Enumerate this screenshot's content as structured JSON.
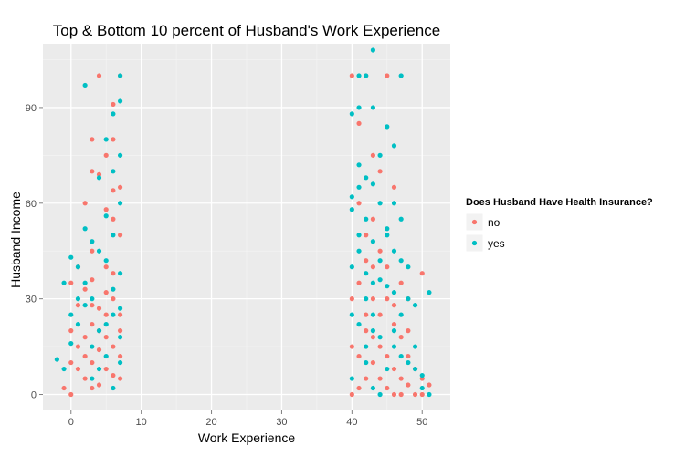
{
  "chart_data": {
    "type": "scatter",
    "title": "Top & Bottom 10 percent of Husband's Work Experience",
    "xlabel": "Work Experience",
    "ylabel": "Husband Income",
    "xlim": [
      -4,
      54
    ],
    "ylim": [
      -5,
      110
    ],
    "x_ticks": [
      0,
      10,
      20,
      30,
      40,
      50
    ],
    "y_ticks": [
      0,
      30,
      60,
      90
    ],
    "grid": true,
    "legend": {
      "title": "Does Husband Have Health Insurance?",
      "placement": "right",
      "entries": [
        {
          "label": "no",
          "color": "#F8766D"
        },
        {
          "label": "yes",
          "color": "#00BFC4"
        }
      ]
    },
    "series": [
      {
        "name": "no",
        "color": "#F8766D",
        "points": [
          [
            4,
            100
          ],
          [
            6,
            91
          ],
          [
            7,
            100
          ],
          [
            3,
            80
          ],
          [
            5,
            75
          ],
          [
            6,
            80
          ],
          [
            3,
            70
          ],
          [
            4,
            69
          ],
          [
            6,
            64
          ],
          [
            7,
            65
          ],
          [
            2,
            60
          ],
          [
            5,
            58
          ],
          [
            6,
            55
          ],
          [
            1,
            40
          ],
          [
            3,
            45
          ],
          [
            7,
            50
          ],
          [
            0,
            35
          ],
          [
            5,
            40
          ],
          [
            1,
            15
          ],
          [
            0,
            10
          ],
          [
            -1,
            2
          ],
          [
            0,
            0
          ],
          [
            2,
            5
          ],
          [
            3,
            10
          ],
          [
            4,
            20
          ],
          [
            5,
            25
          ],
          [
            6,
            30
          ],
          [
            7,
            12
          ],
          [
            2,
            18
          ],
          [
            3,
            22
          ],
          [
            4,
            3
          ],
          [
            5,
            8
          ],
          [
            6,
            15
          ],
          [
            7,
            5
          ],
          [
            1,
            28
          ],
          [
            2,
            33
          ],
          [
            3,
            36
          ],
          [
            4,
            27
          ],
          [
            6,
            38
          ],
          [
            7,
            20
          ],
          [
            1,
            8
          ],
          [
            2,
            12
          ],
          [
            3,
            2
          ],
          [
            4,
            14
          ],
          [
            5,
            18
          ],
          [
            6,
            6
          ],
          [
            7,
            25
          ],
          [
            0,
            20
          ],
          [
            3,
            28
          ],
          [
            5,
            32
          ],
          [
            40,
            100
          ],
          [
            42,
            100
          ],
          [
            45,
            100
          ],
          [
            41,
            85
          ],
          [
            43,
            75
          ],
          [
            44,
            70
          ],
          [
            46,
            65
          ],
          [
            41,
            60
          ],
          [
            43,
            55
          ],
          [
            42,
            50
          ],
          [
            44,
            45
          ],
          [
            45,
            40
          ],
          [
            47,
            35
          ],
          [
            48,
            30
          ],
          [
            50,
            38
          ],
          [
            42,
            42
          ],
          [
            41,
            35
          ],
          [
            40,
            30
          ],
          [
            43,
            30
          ],
          [
            44,
            25
          ],
          [
            46,
            22
          ],
          [
            47,
            18
          ],
          [
            48,
            12
          ],
          [
            49,
            8
          ],
          [
            50,
            5
          ],
          [
            51,
            3
          ],
          [
            40,
            0
          ],
          [
            41,
            2
          ],
          [
            42,
            5
          ],
          [
            43,
            10
          ],
          [
            44,
            15
          ],
          [
            45,
            12
          ],
          [
            46,
            8
          ],
          [
            47,
            5
          ],
          [
            48,
            3
          ],
          [
            49,
            0
          ],
          [
            50,
            0
          ],
          [
            45,
            30
          ],
          [
            46,
            28
          ],
          [
            42,
            20
          ],
          [
            43,
            18
          ],
          [
            40,
            15
          ],
          [
            41,
            12
          ],
          [
            44,
            5
          ],
          [
            45,
            2
          ],
          [
            46,
            0
          ],
          [
            47,
            0
          ],
          [
            48,
            20
          ],
          [
            42,
            25
          ],
          [
            43,
            40
          ]
        ]
      },
      {
        "name": "yes",
        "color": "#00BFC4",
        "points": [
          [
            2,
            97
          ],
          [
            7,
            100
          ],
          [
            7,
            92
          ],
          [
            6,
            88
          ],
          [
            5,
            80
          ],
          [
            7,
            75
          ],
          [
            6,
            70
          ],
          [
            4,
            68
          ],
          [
            7,
            60
          ],
          [
            5,
            56
          ],
          [
            6,
            50
          ],
          [
            3,
            48
          ],
          [
            2,
            52
          ],
          [
            4,
            45
          ],
          [
            5,
            42
          ],
          [
            7,
            38
          ],
          [
            1,
            40
          ],
          [
            0,
            43
          ],
          [
            -1,
            35
          ],
          [
            1,
            30
          ],
          [
            0,
            25
          ],
          [
            2,
            28
          ],
          [
            3,
            30
          ],
          [
            6,
            33
          ],
          [
            7,
            27
          ],
          [
            5,
            22
          ],
          [
            4,
            20
          ],
          [
            3,
            15
          ],
          [
            -2,
            11
          ],
          [
            -1,
            8
          ],
          [
            0,
            16
          ],
          [
            1,
            22
          ],
          [
            2,
            35
          ],
          [
            6,
            25
          ],
          [
            7,
            18
          ],
          [
            5,
            12
          ],
          [
            4,
            8
          ],
          [
            3,
            5
          ],
          [
            6,
            2
          ],
          [
            7,
            10
          ],
          [
            43,
            108
          ],
          [
            41,
            100
          ],
          [
            42,
            100
          ],
          [
            47,
            100
          ],
          [
            43,
            90
          ],
          [
            41,
            90
          ],
          [
            40,
            88
          ],
          [
            45,
            84
          ],
          [
            46,
            78
          ],
          [
            44,
            75
          ],
          [
            41,
            72
          ],
          [
            42,
            68
          ],
          [
            43,
            66
          ],
          [
            44,
            60
          ],
          [
            40,
            58
          ],
          [
            42,
            55
          ],
          [
            45,
            52
          ],
          [
            41,
            50
          ],
          [
            43,
            48
          ],
          [
            46,
            45
          ],
          [
            47,
            42
          ],
          [
            40,
            40
          ],
          [
            42,
            38
          ],
          [
            44,
            36
          ],
          [
            45,
            34
          ],
          [
            46,
            32
          ],
          [
            48,
            30
          ],
          [
            49,
            28
          ],
          [
            51,
            32
          ],
          [
            40,
            25
          ],
          [
            41,
            22
          ],
          [
            43,
            20
          ],
          [
            44,
            18
          ],
          [
            46,
            15
          ],
          [
            47,
            12
          ],
          [
            48,
            10
          ],
          [
            49,
            8
          ],
          [
            50,
            6
          ],
          [
            51,
            0
          ],
          [
            40,
            5
          ],
          [
            42,
            10
          ],
          [
            43,
            2
          ],
          [
            44,
            0
          ],
          [
            45,
            8
          ],
          [
            46,
            20
          ],
          [
            47,
            25
          ],
          [
            41,
            45
          ],
          [
            42,
            30
          ],
          [
            43,
            35
          ],
          [
            44,
            42
          ],
          [
            45,
            50
          ],
          [
            40,
            62
          ],
          [
            41,
            65
          ],
          [
            46,
            60
          ],
          [
            47,
            55
          ],
          [
            48,
            40
          ],
          [
            49,
            15
          ],
          [
            50,
            2
          ],
          [
            42,
            15
          ],
          [
            43,
            25
          ]
        ]
      }
    ]
  }
}
